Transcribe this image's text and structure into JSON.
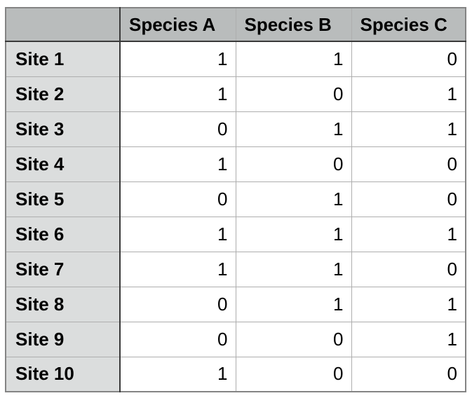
{
  "table": {
    "corner": "",
    "columns": [
      "Species A",
      "Species B",
      "Species C"
    ],
    "rows": [
      {
        "label": "Site 1",
        "values": [
          "1",
          "1",
          "0"
        ]
      },
      {
        "label": "Site 2",
        "values": [
          "1",
          "0",
          "1"
        ]
      },
      {
        "label": "Site 3",
        "values": [
          "0",
          "1",
          "1"
        ]
      },
      {
        "label": "Site 4",
        "values": [
          "1",
          "0",
          "0"
        ]
      },
      {
        "label": "Site 5",
        "values": [
          "0",
          "1",
          "0"
        ]
      },
      {
        "label": "Site 6",
        "values": [
          "1",
          "1",
          "1"
        ]
      },
      {
        "label": "Site 7",
        "values": [
          "1",
          "1",
          "0"
        ]
      },
      {
        "label": "Site 8",
        "values": [
          "0",
          "1",
          "1"
        ]
      },
      {
        "label": "Site 9",
        "values": [
          "0",
          "0",
          "1"
        ]
      },
      {
        "label": "Site 10",
        "values": [
          "1",
          "0",
          "0"
        ]
      }
    ]
  },
  "colors": {
    "header_bg": "#b9bcbc",
    "row_label_bg": "#dbdddd",
    "cell_bg": "#ffffff",
    "grid_line": "#aeaeae",
    "dark_line": "#3a3a3a",
    "outer_border": "#848484",
    "text": "#000000"
  },
  "chart_data": {
    "type": "table",
    "title": "",
    "columns": [
      "Species A",
      "Species B",
      "Species C"
    ],
    "row_labels": [
      "Site 1",
      "Site 2",
      "Site 3",
      "Site 4",
      "Site 5",
      "Site 6",
      "Site 7",
      "Site 8",
      "Site 9",
      "Site 10"
    ],
    "matrix": [
      [
        1,
        1,
        0
      ],
      [
        1,
        0,
        1
      ],
      [
        0,
        1,
        1
      ],
      [
        1,
        0,
        0
      ],
      [
        0,
        1,
        0
      ],
      [
        1,
        1,
        1
      ],
      [
        1,
        1,
        0
      ],
      [
        0,
        1,
        1
      ],
      [
        0,
        0,
        1
      ],
      [
        1,
        0,
        0
      ]
    ]
  }
}
